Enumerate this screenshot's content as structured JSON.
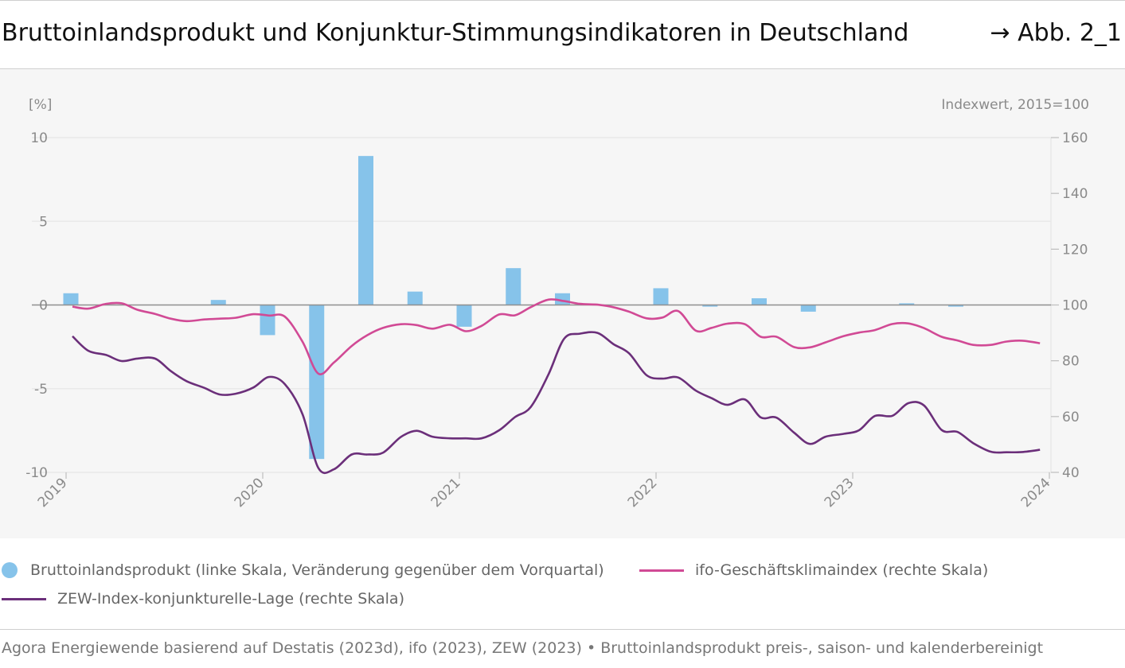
{
  "header": {
    "title": "Bruttoinlandsprodukt und Konjunktur-Stimmungsindikatoren in Deutschland",
    "figure_ref": "→ Abb. 2_1"
  },
  "colors": {
    "gdp": "#86c3ea",
    "ifo": "#d14a95",
    "zew": "#6b2f7a",
    "zero_line": "#8f8f8f",
    "grid": "#e9e9e9",
    "plot_background": "#f6f6f6"
  },
  "legend": {
    "gdp": "Bruttoinlandsprodukt (linke Skala, Veränderung gegenüber dem Vorquartal)",
    "ifo": "ifo-Geschäftsklimaindex (rechte Skala)",
    "zew": "ZEW-Index-konjunkturelle-Lage (rechte Skala)"
  },
  "source": "Agora Energiewende basierend auf Destatis (2023d), ifo (2023), ZEW (2023) • Bruttoinlandsprodukt preis-, saison- und kalenderbereinigt",
  "chart_data": {
    "type": "bar+line",
    "left_axis": {
      "unit_label": "[%]",
      "ylim": [
        -10,
        10
      ],
      "ticks": [
        10,
        5,
        0,
        -5,
        -10
      ]
    },
    "right_axis": {
      "unit_label": "Indexwert, 2015=100",
      "ylim": [
        40,
        160
      ],
      "ticks": [
        160,
        140,
        120,
        100,
        80,
        60,
        40
      ]
    },
    "x_axis": {
      "ticks": [
        "2019",
        "2020",
        "2021",
        "2022",
        "2023",
        "2024"
      ],
      "range": [
        2019,
        2024
      ],
      "tick_label_rotation": "-45deg"
    },
    "grid": "horizontal",
    "bars": {
      "series": "gdp",
      "axis": "left",
      "points": [
        {
          "x": 2019.0,
          "value": 0.7
        },
        {
          "x": 2019.25,
          "value": 0.0
        },
        {
          "x": 2019.5,
          "value": 0.0
        },
        {
          "x": 2019.75,
          "value": 0.3
        },
        {
          "x": 2020.0,
          "value": -1.8
        },
        {
          "x": 2020.25,
          "value": -9.2
        },
        {
          "x": 2020.5,
          "value": 8.9
        },
        {
          "x": 2020.75,
          "value": 0.8
        },
        {
          "x": 2021.0,
          "value": -1.3
        },
        {
          "x": 2021.25,
          "value": 2.2
        },
        {
          "x": 2021.5,
          "value": 0.7
        },
        {
          "x": 2021.75,
          "value": 0.0
        },
        {
          "x": 2022.0,
          "value": 1.0
        },
        {
          "x": 2022.25,
          "value": -0.1
        },
        {
          "x": 2022.5,
          "value": 0.4
        },
        {
          "x": 2022.75,
          "value": -0.4
        },
        {
          "x": 2023.0,
          "value": 0.0
        },
        {
          "x": 2023.25,
          "value": 0.1
        },
        {
          "x": 2023.5,
          "value": -0.1
        },
        {
          "x": 2023.75,
          "value": 0.0
        }
      ]
    },
    "lines": [
      {
        "series": "ifo",
        "axis": "right",
        "points": [
          [
            2019.0,
            99.4
          ],
          [
            2019.08,
            98.7
          ],
          [
            2019.17,
            100.4
          ],
          [
            2019.25,
            100.6
          ],
          [
            2019.33,
            98.3
          ],
          [
            2019.42,
            96.8
          ],
          [
            2019.5,
            95.1
          ],
          [
            2019.58,
            94.2
          ],
          [
            2019.67,
            94.8
          ],
          [
            2019.75,
            95.1
          ],
          [
            2019.83,
            95.4
          ],
          [
            2019.92,
            96.7
          ],
          [
            2020.0,
            96.2
          ],
          [
            2020.08,
            95.8
          ],
          [
            2020.17,
            86.8
          ],
          [
            2020.25,
            75.4
          ],
          [
            2020.33,
            79.4
          ],
          [
            2020.42,
            85.3
          ],
          [
            2020.5,
            89.2
          ],
          [
            2020.58,
            91.8
          ],
          [
            2020.67,
            93.1
          ],
          [
            2020.75,
            92.8
          ],
          [
            2020.83,
            91.5
          ],
          [
            2020.92,
            92.9
          ],
          [
            2021.0,
            90.6
          ],
          [
            2021.08,
            92.5
          ],
          [
            2021.17,
            96.6
          ],
          [
            2021.25,
            96.3
          ],
          [
            2021.33,
            99.2
          ],
          [
            2021.42,
            101.9
          ],
          [
            2021.5,
            101.4
          ],
          [
            2021.58,
            100.4
          ],
          [
            2021.67,
            100.1
          ],
          [
            2021.75,
            99.2
          ],
          [
            2021.83,
            97.6
          ],
          [
            2021.92,
            95.2
          ],
          [
            2022.0,
            95.5
          ],
          [
            2022.08,
            97.8
          ],
          [
            2022.17,
            90.8
          ],
          [
            2022.25,
            91.8
          ],
          [
            2022.33,
            93.3
          ],
          [
            2022.42,
            93.1
          ],
          [
            2022.5,
            88.6
          ],
          [
            2022.58,
            88.6
          ],
          [
            2022.67,
            84.9
          ],
          [
            2022.75,
            84.8
          ],
          [
            2022.83,
            86.6
          ],
          [
            2022.92,
            88.8
          ],
          [
            2023.0,
            90.1
          ],
          [
            2023.08,
            91.0
          ],
          [
            2023.17,
            93.2
          ],
          [
            2023.25,
            93.4
          ],
          [
            2023.33,
            91.7
          ],
          [
            2023.42,
            88.6
          ],
          [
            2023.5,
            87.3
          ],
          [
            2023.58,
            85.7
          ],
          [
            2023.67,
            85.7
          ],
          [
            2023.75,
            86.9
          ],
          [
            2023.83,
            87.2
          ],
          [
            2023.92,
            86.3
          ]
        ]
      },
      {
        "series": "zew",
        "axis": "right",
        "points": [
          [
            2019.0,
            88.8
          ],
          [
            2019.08,
            83.6
          ],
          [
            2019.17,
            82.1
          ],
          [
            2019.25,
            79.9
          ],
          [
            2019.33,
            80.8
          ],
          [
            2019.42,
            80.8
          ],
          [
            2019.5,
            76.3
          ],
          [
            2019.58,
            72.7
          ],
          [
            2019.67,
            70.3
          ],
          [
            2019.75,
            67.9
          ],
          [
            2019.83,
            68.2
          ],
          [
            2019.92,
            70.4
          ],
          [
            2020.0,
            74.2
          ],
          [
            2020.08,
            71.6
          ],
          [
            2020.17,
            60.8
          ],
          [
            2020.25,
            41.6
          ],
          [
            2020.33,
            41.1
          ],
          [
            2020.42,
            46.4
          ],
          [
            2020.5,
            46.4
          ],
          [
            2020.58,
            47.1
          ],
          [
            2020.67,
            52.7
          ],
          [
            2020.75,
            54.9
          ],
          [
            2020.83,
            52.8
          ],
          [
            2020.92,
            52.2
          ],
          [
            2021.0,
            52.2
          ],
          [
            2021.08,
            52.2
          ],
          [
            2021.17,
            55.1
          ],
          [
            2021.25,
            59.8
          ],
          [
            2021.33,
            63.4
          ],
          [
            2021.42,
            75.0
          ],
          [
            2021.5,
            87.9
          ],
          [
            2021.58,
            89.7
          ],
          [
            2021.67,
            90.0
          ],
          [
            2021.75,
            86.0
          ],
          [
            2021.83,
            82.7
          ],
          [
            2021.92,
            74.8
          ],
          [
            2022.0,
            73.6
          ],
          [
            2022.08,
            74.0
          ],
          [
            2022.17,
            69.3
          ],
          [
            2022.25,
            66.6
          ],
          [
            2022.33,
            64.2
          ],
          [
            2022.42,
            66.1
          ],
          [
            2022.5,
            59.7
          ],
          [
            2022.58,
            59.6
          ],
          [
            2022.67,
            54.2
          ],
          [
            2022.75,
            50.2
          ],
          [
            2022.83,
            52.8
          ],
          [
            2022.92,
            53.8
          ],
          [
            2023.0,
            55.1
          ],
          [
            2023.08,
            60.2
          ],
          [
            2023.17,
            60.3
          ],
          [
            2023.25,
            64.8
          ],
          [
            2023.33,
            64.0
          ],
          [
            2023.42,
            55.2
          ],
          [
            2023.5,
            54.5
          ],
          [
            2023.58,
            50.5
          ],
          [
            2023.67,
            47.4
          ],
          [
            2023.75,
            47.2
          ],
          [
            2023.83,
            47.3
          ],
          [
            2023.92,
            48.1
          ]
        ]
      }
    ]
  }
}
